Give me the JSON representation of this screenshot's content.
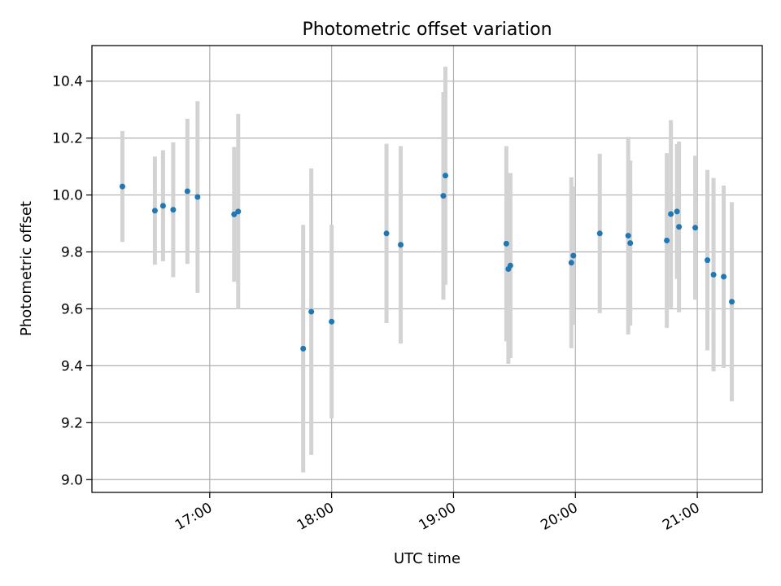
{
  "chart_data": {
    "type": "scatter",
    "title": "Photometric offset variation",
    "xlabel": "UTC time",
    "ylabel": "Photometric offset",
    "xlim": [
      "16:02",
      "21:32"
    ],
    "ylim": [
      8.955,
      10.525
    ],
    "x_ticks": [
      "17:00",
      "18:00",
      "19:00",
      "20:00",
      "21:00"
    ],
    "y_ticks": [
      9.0,
      9.2,
      9.4,
      9.6,
      9.8,
      10.0,
      10.2,
      10.4
    ],
    "y_tick_labels": [
      "9.0",
      "9.2",
      "9.4",
      "9.6",
      "9.8",
      "10.0",
      "10.2",
      "10.4"
    ],
    "grid": true,
    "point_color": "#1f77b4",
    "errorbar_color": "#d3d3d3",
    "points": [
      {
        "x": "16:17",
        "y": 10.03,
        "err": 0.195
      },
      {
        "x": "16:33",
        "y": 9.945,
        "err": 0.19
      },
      {
        "x": "16:37",
        "y": 9.962,
        "err": 0.195
      },
      {
        "x": "16:42",
        "y": 9.948,
        "err": 0.237
      },
      {
        "x": "16:49",
        "y": 10.013,
        "err": 0.255
      },
      {
        "x": "16:54",
        "y": 9.993,
        "err": 0.337
      },
      {
        "x": "17:12",
        "y": 9.932,
        "err": 0.237
      },
      {
        "x": "17:14",
        "y": 9.942,
        "err": 0.343
      },
      {
        "x": "17:46",
        "y": 9.46,
        "err": 0.435
      },
      {
        "x": "17:50",
        "y": 9.59,
        "err": 0.503
      },
      {
        "x": "18:00",
        "y": 9.555,
        "err": 0.34
      },
      {
        "x": "18:27",
        "y": 9.865,
        "err": 0.315
      },
      {
        "x": "18:34",
        "y": 9.825,
        "err": 0.347
      },
      {
        "x": "18:55",
        "y": 9.997,
        "err": 0.365
      },
      {
        "x": "18:56",
        "y": 10.068,
        "err": 0.383
      },
      {
        "x": "19:26",
        "y": 9.829,
        "err": 0.343
      },
      {
        "x": "19:27",
        "y": 9.74,
        "err": 0.333
      },
      {
        "x": "19:28",
        "y": 9.752,
        "err": 0.325
      },
      {
        "x": "19:58",
        "y": 9.762,
        "err": 0.3
      },
      {
        "x": "19:59",
        "y": 9.787,
        "err": 0.243
      },
      {
        "x": "20:12",
        "y": 9.865,
        "err": 0.28
      },
      {
        "x": "20:26",
        "y": 9.857,
        "err": 0.347
      },
      {
        "x": "20:27",
        "y": 9.831,
        "err": 0.29
      },
      {
        "x": "20:45",
        "y": 9.84,
        "err": 0.307
      },
      {
        "x": "20:47",
        "y": 9.933,
        "err": 0.33
      },
      {
        "x": "20:50",
        "y": 9.942,
        "err": 0.237
      },
      {
        "x": "20:51",
        "y": 9.888,
        "err": 0.3
      },
      {
        "x": "20:59",
        "y": 9.885,
        "err": 0.253
      },
      {
        "x": "21:05",
        "y": 9.771,
        "err": 0.317
      },
      {
        "x": "21:08",
        "y": 9.72,
        "err": 0.34
      },
      {
        "x": "21:13",
        "y": 9.713,
        "err": 0.32
      },
      {
        "x": "21:17",
        "y": 9.625,
        "err": 0.35
      }
    ]
  }
}
